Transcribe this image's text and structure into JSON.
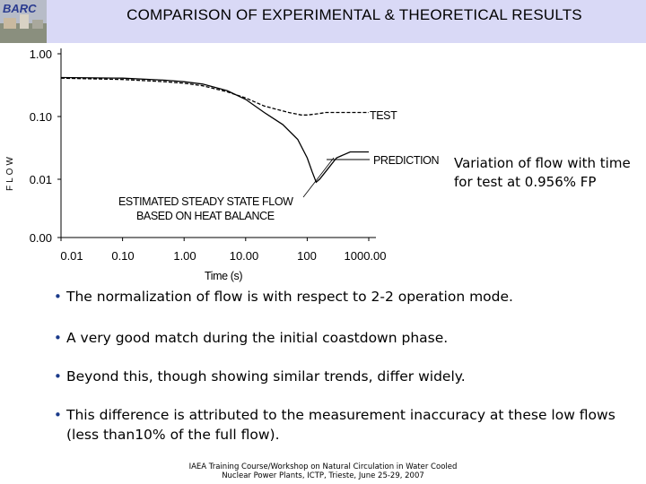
{
  "header": {
    "logo_text": "BARC",
    "title": "COMPARISON OF EXPERIMENTAL & THEORETICAL RESULTS"
  },
  "chart_data": {
    "type": "line",
    "xlabel": "Time (s)",
    "ylabel": "FLOW",
    "x_scale": "log",
    "xlim": [
      0.01,
      1000
    ],
    "x_ticks": [
      "0.01",
      "0.10",
      "1.00",
      "10.00",
      "100",
      "1000.00"
    ],
    "y_ticks": [
      "1.00",
      "0.10",
      "0.01",
      "0.00"
    ],
    "series": [
      {
        "name": "TEST",
        "x": [
          0.01,
          0.1,
          0.5,
          1,
          2,
          5,
          10,
          20,
          50,
          80,
          100,
          150,
          200,
          400,
          1000
        ],
        "y": [
          0.4,
          0.38,
          0.35,
          0.33,
          0.3,
          0.24,
          0.19,
          0.14,
          0.11,
          0.1,
          0.1,
          0.105,
          0.11,
          0.11,
          0.11
        ]
      },
      {
        "name": "PREDICTION",
        "x": [
          0.01,
          0.1,
          0.5,
          1,
          2,
          5,
          10,
          20,
          40,
          70,
          100,
          120,
          140,
          160,
          200,
          300,
          500,
          1000
        ],
        "y": [
          0.41,
          0.4,
          0.37,
          0.35,
          0.32,
          0.25,
          0.18,
          0.11,
          0.07,
          0.04,
          0.02,
          0.012,
          0.008,
          0.009,
          0.012,
          0.02,
          0.025,
          0.025
        ]
      }
    ],
    "annotations": [
      "TEST",
      "PREDICTION",
      "ESTIMATED STEADY STATE FLOW",
      "BASED ON HEAT BALANCE"
    ]
  },
  "side_note": "Variation of flow with time for test at 0.956% FP",
  "bullets": [
    "The normalization of flow is with respect to 2-2 operation mode.",
    "A very good match during the initial coastdown phase.",
    "Beyond this, though showing similar trends, differ widely.",
    "This difference is attributed to the measurement inaccuracy at these low flows (less than10% of the full flow)."
  ],
  "footer": {
    "line1": "IAEA Training Course/Workshop on Natural Circulation in Water Cooled",
    "line2": "Nuclear Power Plants, ICTP, Trieste, June 25-29, 2007"
  },
  "colors": {
    "header_bg": "#d9d9f6",
    "bullet": "#1a3a8a"
  }
}
